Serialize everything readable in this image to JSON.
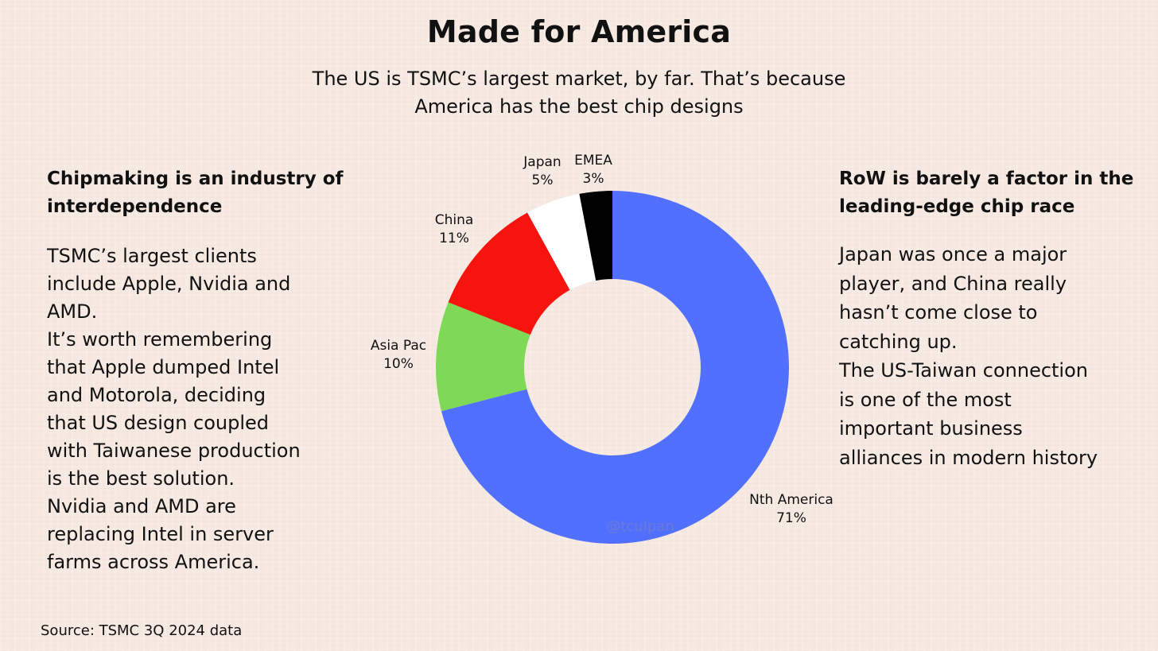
{
  "title": "Made for America",
  "subtitle": "The US is TSMC’s largest market, by far. That’s because America has the best chip designs",
  "left": {
    "heading": "Chipmaking is an industry of interdependence",
    "body": "TSMC’s largest clients\ninclude Apple, Nvidia and\nAMD.\nIt’s worth remembering\nthat Apple dumped Intel\nand Motorola, deciding\nthat US design coupled\nwith Taiwanese production\nis the best solution.\nNvidia and AMD are\nreplacing Intel in server\nfarms across America."
  },
  "right": {
    "heading": "RoW is barely a factor in the leading-edge chip race",
    "body": "Japan was once a major\nplayer, and China really\nhasn’t come close to\ncatching up.\nThe US-Taiwan connection\nis one of the most\nimportant business\nalliances in modern history"
  },
  "source": "Source: TSMC 3Q 2024 data",
  "watermark": "@tculpan",
  "chart_data": {
    "type": "pie",
    "donut": true,
    "categories": [
      "Nth America",
      "Asia Pac",
      "China",
      "Japan",
      "EMEA"
    ],
    "values": [
      71,
      10,
      11,
      5,
      3
    ],
    "value_labels": [
      "71%",
      "10%",
      "11%",
      "5%",
      "3%"
    ],
    "colors": [
      "#5270ff",
      "#7ed957",
      "#f7140f",
      "#ffffff",
      "#000000"
    ],
    "start": "12 o'clock, clockwise"
  }
}
